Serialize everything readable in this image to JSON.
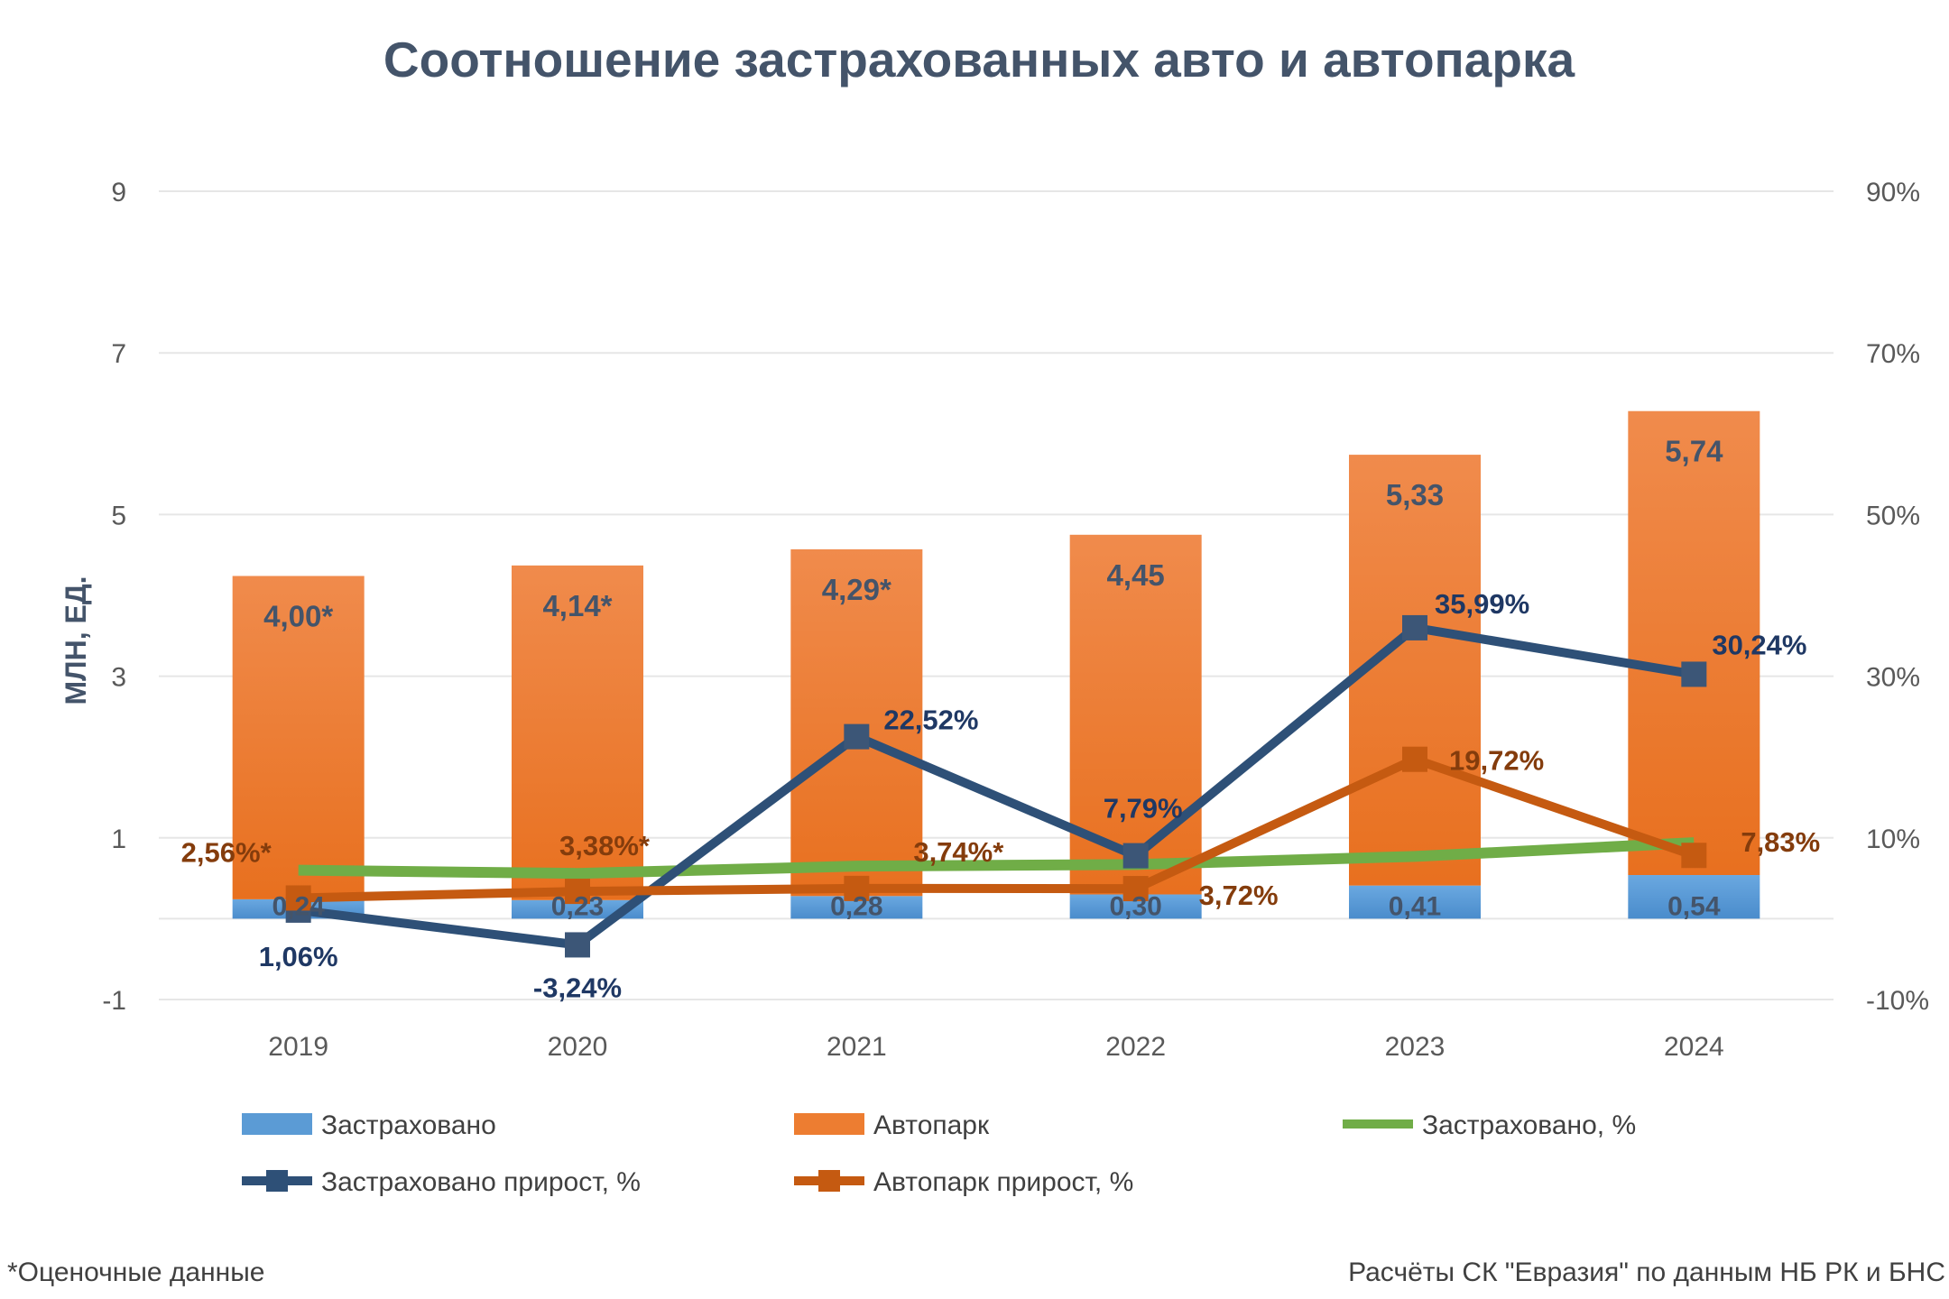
{
  "chart_data": {
    "type": "bar",
    "title": "Соотношение застрахованных авто и автопарка",
    "ylabel": "МЛН, ЕД.",
    "ylim": [
      -1,
      9
    ],
    "yticks": [
      "9",
      "7",
      "5",
      "3",
      "1",
      "-1"
    ],
    "y2lim": [
      -10,
      90
    ],
    "y2ticks": [
      "90%",
      "70%",
      "50%",
      "30%",
      "10%",
      "-10%"
    ],
    "grid": true,
    "legend_position": "bottom",
    "stacked": true,
    "categories": [
      "2019",
      "2020",
      "2021",
      "2022",
      "2023",
      "2024"
    ],
    "bar_series": [
      {
        "name": "Застраховано",
        "color": "#5b9bd5",
        "values": [
          0.24,
          0.23,
          0.28,
          0.3,
          0.41,
          0.54
        ],
        "labels": [
          "0,24",
          "0,23",
          "0,28",
          "0,30",
          "0,41",
          "0,54"
        ]
      },
      {
        "name": "Автопарк",
        "color": "#ed7d31",
        "values": [
          4.0,
          4.14,
          4.29,
          4.45,
          5.33,
          5.74
        ],
        "labels": [
          "4,00*",
          "4,14*",
          "4,29*",
          "4,45",
          "5,33",
          "5,74"
        ]
      }
    ],
    "line_series": [
      {
        "name": "Застраховано, %",
        "axis": "right",
        "color": "#70ad47",
        "values": [
          6.0,
          5.6,
          6.5,
          6.7,
          7.7,
          9.4
        ],
        "labels": []
      },
      {
        "name": "Застраховано прирост, %",
        "axis": "right",
        "color": "#2e5077",
        "marker": "square",
        "values": [
          1.06,
          -3.24,
          22.52,
          7.79,
          35.99,
          30.24
        ],
        "labels": [
          "1,06%",
          "-3,24%",
          "22,52%",
          "7,79%",
          "35,99%",
          "30,24%"
        ]
      },
      {
        "name": "Автопарк прирост, %",
        "axis": "right",
        "color": "#c55a11",
        "marker": "square",
        "values": [
          2.56,
          3.38,
          3.74,
          3.72,
          19.72,
          7.83
        ],
        "labels": [
          "2,56%*",
          "3,38%*",
          "3,74%*",
          "3,72%",
          "19,72%",
          "7,83%"
        ]
      }
    ]
  },
  "footnote_left": "*Оценочные данные",
  "footnote_right": "Расчёты СК \"Евразия\" по данным НБ РК и БНС",
  "colors": {
    "title": "#44546a",
    "axis_text": "#595959",
    "navy_label": "#1f3864",
    "brown_label": "#843c0c"
  }
}
